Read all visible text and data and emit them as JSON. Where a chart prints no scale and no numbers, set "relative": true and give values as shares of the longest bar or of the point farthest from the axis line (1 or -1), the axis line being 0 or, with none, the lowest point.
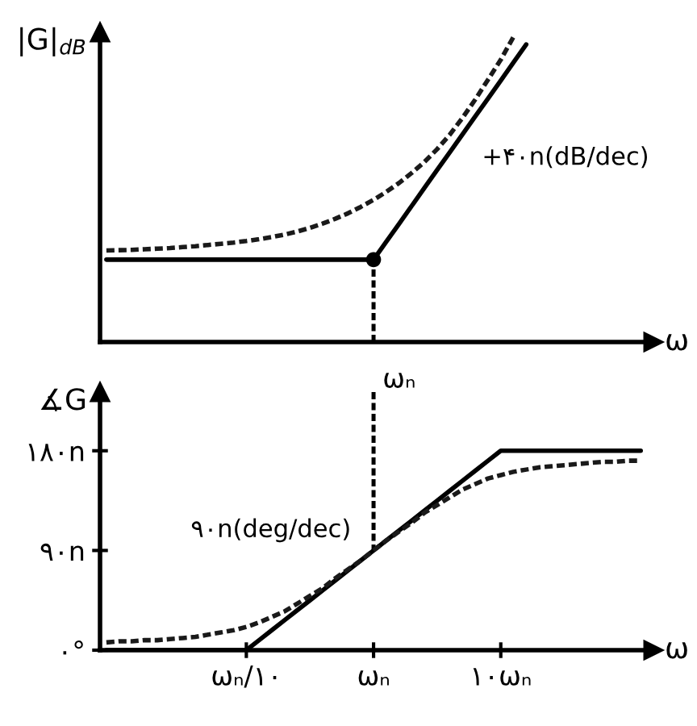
{
  "chart_data": [
    {
      "type": "line",
      "relative": true,
      "tick_labels": false,
      "xlabel": "ω",
      "ylabel": "|G|$_{dB}$",
      "categories": [
        null,
        null,
        null,
        null,
        null,
        null,
        null,
        null,
        null,
        null,
        null,
        "ωₙ/۱۰",
        null,
        null,
        null,
        null,
        null,
        null,
        null,
        null,
        null,
        "ωₙ",
        null,
        null,
        null,
        null,
        null,
        null,
        null,
        null,
        null,
        "۱۰ωₙ",
        null,
        null,
        null,
        null,
        null,
        null,
        null,
        null,
        null,
        null,
        null
      ],
      "series": [
        {
          "color": "#000000",
          "line_style": "solid",
          "values": [
            0.27,
            0.27,
            0.27,
            0.27,
            0.27,
            0.27,
            0.27,
            0.27,
            0.27,
            0.27,
            0.27,
            0.27,
            0.27,
            0.27,
            0.27,
            0.27,
            0.27,
            0.27,
            0.27,
            0.27,
            0.27,
            0.27,
            0.329,
            0.387,
            0.446,
            0.505,
            0.564,
            0.622,
            0.681,
            0.74,
            0.798,
            0.857,
            0.916,
            0.975,
            null,
            null,
            null,
            null,
            null,
            null,
            null,
            null,
            null
          ]
        },
        {
          "color": "#1a1a1a",
          "line_style": "dashed",
          "values": [
            0.3,
            0.301,
            0.302,
            0.304,
            0.306,
            0.308,
            0.311,
            0.314,
            0.318,
            0.322,
            0.326,
            0.331,
            0.337,
            0.344,
            0.352,
            0.362,
            0.374,
            0.388,
            0.404,
            0.422,
            0.443,
            0.466,
            0.492,
            0.521,
            0.554,
            0.59,
            0.632,
            0.68,
            0.735,
            0.795,
            0.86,
            0.925,
            1.0,
            null,
            null,
            null,
            null,
            null,
            null,
            null,
            null,
            null,
            null
          ]
        },
        {
          "type": "scatter",
          "color": "#000000",
          "marker": "circle",
          "values": [
            null,
            null,
            null,
            null,
            null,
            null,
            null,
            null,
            null,
            null,
            null,
            null,
            null,
            null,
            null,
            null,
            null,
            null,
            null,
            null,
            null,
            0.27,
            null,
            null,
            null,
            null,
            null,
            null,
            null,
            null,
            null,
            null,
            null,
            null,
            null,
            null,
            null,
            null,
            null,
            null,
            null,
            null,
            null
          ]
        }
      ],
      "ref_lines": [
        {
          "axis": "x",
          "value": "ωₙ",
          "label": "ωₙ",
          "line_style": "dashed",
          "color": "#000000"
        }
      ],
      "annotations": [
        "+۴۰n(dB/dec)"
      ]
    },
    {
      "type": "line",
      "ylim": [
        0,
        233
      ],
      "categories": [
        null,
        null,
        null,
        null,
        null,
        null,
        null,
        null,
        null,
        null,
        null,
        "ωₙ/۱۰",
        null,
        null,
        null,
        null,
        null,
        null,
        null,
        null,
        null,
        "ωₙ",
        null,
        null,
        null,
        null,
        null,
        null,
        null,
        null,
        null,
        "۱۰ωₙ",
        null,
        null,
        null,
        null,
        null,
        null,
        null,
        null,
        null,
        null,
        null
      ],
      "yticks": [
        {
          "value": 0,
          "label": "۰°"
        },
        {
          "value": 90,
          "label": "۹۰n"
        },
        {
          "value": 180,
          "label": "۱۸۰n"
        }
      ],
      "xlabel": "ω",
      "ylabel": "∡G",
      "series": [
        {
          "color": "#000000",
          "line_style": "solid",
          "values": [
            0,
            0,
            0,
            0,
            0,
            0,
            0,
            0,
            0,
            0,
            0,
            0,
            9,
            18,
            27,
            36,
            45,
            54,
            63,
            72,
            81,
            90,
            99,
            108,
            117,
            126,
            135,
            144,
            153,
            162,
            171,
            180,
            180,
            180,
            180,
            180,
            180,
            180,
            180,
            180,
            180,
            180,
            180
          ]
        },
        {
          "color": "#1a1a1a",
          "line_style": "dashed",
          "values": [
            7,
            8,
            8,
            9,
            9,
            10,
            11,
            12,
            14,
            16,
            18,
            21,
            25,
            30,
            35,
            42,
            49,
            56,
            65,
            73,
            81,
            90,
            99,
            107,
            115,
            124,
            131,
            138,
            145,
            150,
            155,
            158,
            161,
            163,
            165,
            166,
            167,
            168,
            169,
            170,
            170,
            171,
            171
          ]
        }
      ],
      "annotations": [
        {
          "text": "۹۰n(deg/dec)",
          "x": "ωₙ",
          "y": 90
        }
      ]
    }
  ]
}
